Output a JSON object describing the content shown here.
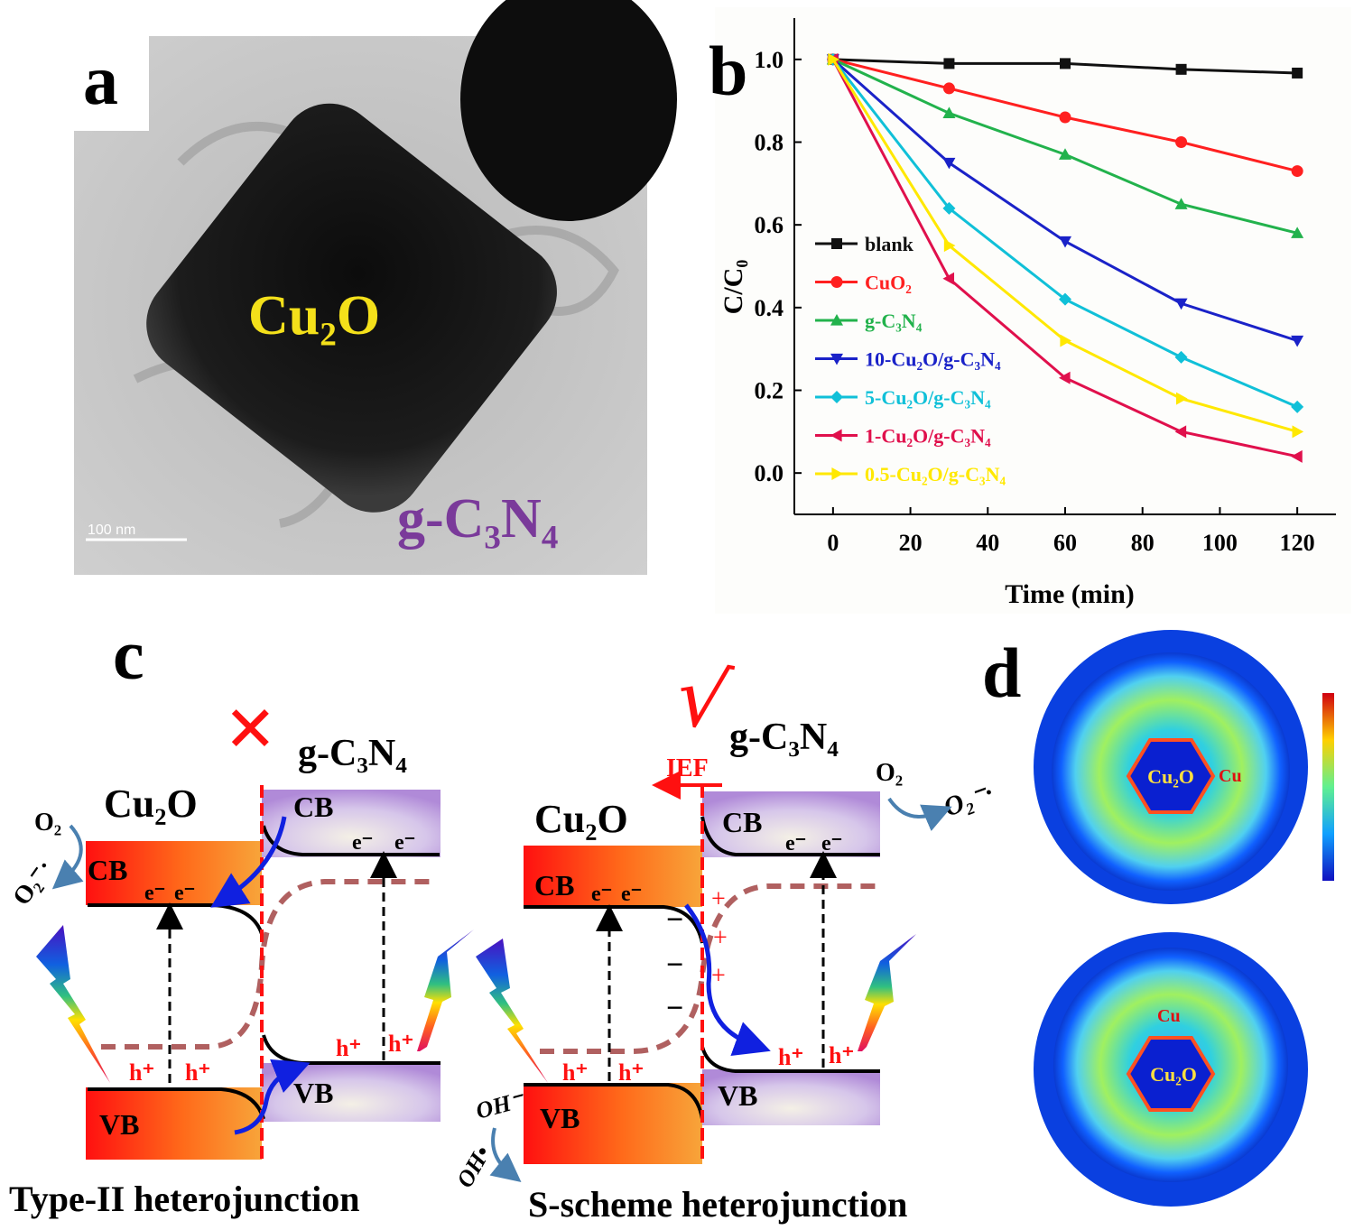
{
  "panels": {
    "a": {
      "letter": "a",
      "label_cu2o": "Cu₂O",
      "label_gc3n4": "g-C₃N₄",
      "scale_bar": "100 nm"
    },
    "b": {
      "letter": "b"
    },
    "c": {
      "letter": "c",
      "left": {
        "title": "Type-II heterojunction",
        "cu2o": "Cu₂O",
        "gc3n4": "g-C₃N₄",
        "cb": "CB",
        "vb": "VB",
        "cb2": "CB",
        "vb2": "VB",
        "e1": "e⁻",
        "e2": "e⁻",
        "e3": "e⁻",
        "e4": "e⁻",
        "h1": "h⁺",
        "h2": "h⁺",
        "h3": "h⁺",
        "h4": "h⁺",
        "o2": "O₂",
        "o2_radical": "O₂⁻·",
        "mark": "✕"
      },
      "right": {
        "title": "S-scheme heterojunction",
        "cu2o": "Cu₂O",
        "gc3n4": "g-C₃N₄",
        "cb": "CB",
        "vb": "VB",
        "cb2": "CB",
        "vb2": "VB",
        "e1": "e⁻",
        "e2": "e⁻",
        "e3": "e⁻",
        "e4": "e⁻",
        "h1": "h⁺",
        "h2": "h⁺",
        "h3": "h⁺",
        "h4": "h⁺",
        "o2": "O₂",
        "o2_radical": "O₂⁻·",
        "oh_minus": "OH⁻",
        "oh_radical": "OH•",
        "ief": "IEF",
        "minus": "−",
        "plus": "+",
        "mark": "√"
      }
    },
    "d": {
      "letter": "d",
      "top": {
        "core": "Cu₂O",
        "atom": "Cu"
      },
      "bottom": {
        "core": "Cu₂O",
        "atom": "Cu"
      }
    }
  },
  "chart_data": {
    "type": "line",
    "title": "",
    "xlabel": "Time (min)",
    "ylabel": "C/C₀",
    "xlim": [
      -10,
      130
    ],
    "ylim": [
      -0.1,
      1.1
    ],
    "x": [
      0,
      30,
      60,
      90,
      120
    ],
    "xticks": [
      0,
      20,
      40,
      60,
      80,
      100,
      120
    ],
    "yticks": [
      "0.0",
      "0.2",
      "0.4",
      "0.6",
      "0.8",
      "1.0"
    ],
    "grid": false,
    "legend_placement": "left",
    "series": [
      {
        "name": "blank",
        "color": "#111111",
        "marker": "square",
        "values": [
          1.0,
          0.99,
          0.99,
          0.976,
          0.967
        ]
      },
      {
        "name": "CuO₂",
        "color": "#ff2020",
        "marker": "circle",
        "values": [
          1.0,
          0.93,
          0.86,
          0.8,
          0.73
        ]
      },
      {
        "name": "g-C₃N₄",
        "color": "#22b24c",
        "marker": "triangle-up",
        "values": [
          1.0,
          0.87,
          0.77,
          0.65,
          0.58
        ]
      },
      {
        "name": "10-Cu₂O/g-C₃N₄",
        "color": "#1a22c8",
        "marker": "triangle-down",
        "values": [
          1.0,
          0.75,
          0.56,
          0.41,
          0.32
        ]
      },
      {
        "name": "5-Cu₂O/g-C₃N₄",
        "color": "#10c0d8",
        "marker": "diamond",
        "values": [
          1.0,
          0.64,
          0.42,
          0.28,
          0.16
        ]
      },
      {
        "name": "1-Cu₂O/g-C₃N₄",
        "color": "#e0104c",
        "marker": "triangle-left",
        "values": [
          1.0,
          0.47,
          0.23,
          0.1,
          0.04
        ]
      },
      {
        "name": "0.5-Cu₂O/g-C₃N₄",
        "color": "#ffe800",
        "marker": "triangle-right",
        "values": [
          1.0,
          0.55,
          0.32,
          0.18,
          0.1
        ]
      }
    ]
  }
}
